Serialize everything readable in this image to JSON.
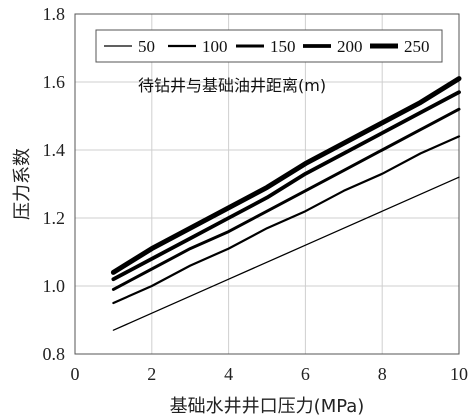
{
  "chart_data": {
    "type": "line",
    "xlabel": "基础水井井口压力(MPa)",
    "ylabel": "压力系数",
    "xlim": [
      0,
      10
    ],
    "ylim": [
      0.8,
      1.8
    ],
    "x_ticks": [
      "0",
      "2",
      "4",
      "6",
      "8",
      "10"
    ],
    "y_ticks": [
      "0.8",
      "1.0",
      "1.2",
      "1.4",
      "1.6",
      "1.8"
    ],
    "grid": true,
    "legend": {
      "title": "待钻井与基础油井距离(m)",
      "position": "top"
    },
    "series": [
      {
        "name": "50",
        "x": [
          1,
          2,
          3,
          4,
          5,
          6,
          7,
          8,
          9,
          10
        ],
        "values": [
          0.87,
          0.92,
          0.97,
          1.02,
          1.07,
          1.12,
          1.17,
          1.22,
          1.27,
          1.32
        ]
      },
      {
        "name": "100",
        "x": [
          1,
          2,
          3,
          4,
          5,
          6,
          7,
          8,
          9,
          10
        ],
        "values": [
          0.95,
          1.0,
          1.06,
          1.11,
          1.17,
          1.22,
          1.28,
          1.33,
          1.39,
          1.44
        ]
      },
      {
        "name": "150",
        "x": [
          1,
          2,
          3,
          4,
          5,
          6,
          7,
          8,
          9,
          10
        ],
        "values": [
          0.99,
          1.05,
          1.11,
          1.16,
          1.22,
          1.28,
          1.34,
          1.4,
          1.46,
          1.52
        ]
      },
      {
        "name": "200",
        "x": [
          1,
          2,
          3,
          4,
          5,
          6,
          7,
          8,
          9,
          10
        ],
        "values": [
          1.02,
          1.08,
          1.14,
          1.2,
          1.26,
          1.33,
          1.39,
          1.45,
          1.51,
          1.57
        ]
      },
      {
        "name": "250",
        "x": [
          1,
          2,
          3,
          4,
          5,
          6,
          7,
          8,
          9,
          10
        ],
        "values": [
          1.04,
          1.11,
          1.17,
          1.23,
          1.29,
          1.36,
          1.42,
          1.48,
          1.54,
          1.61
        ]
      }
    ]
  }
}
